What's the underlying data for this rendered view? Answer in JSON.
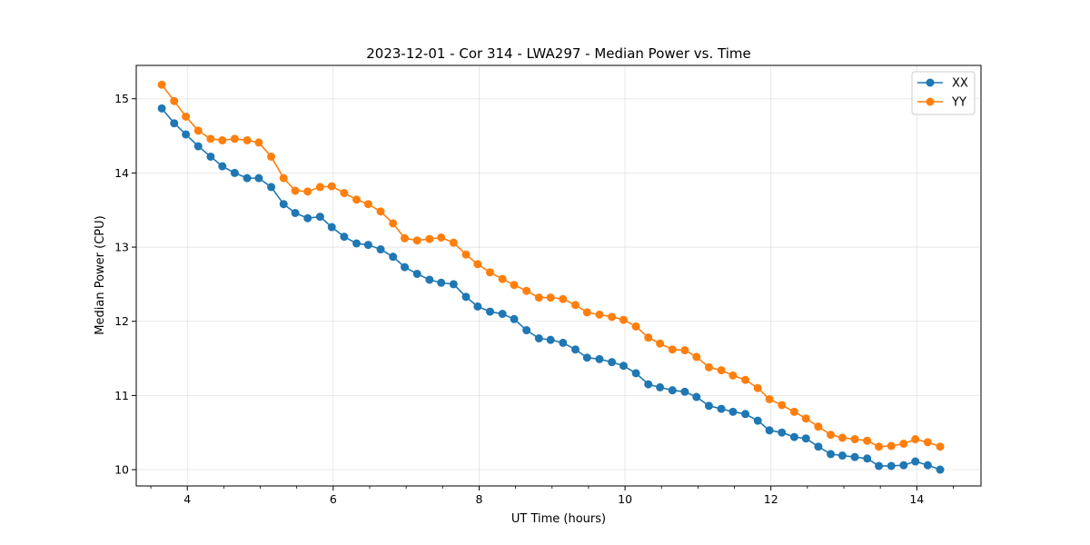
{
  "chart_data": {
    "type": "line",
    "title": "2023-12-01 - Cor 314 - LWA297 - Median Power vs. Time",
    "xlabel": "UT Time (hours)",
    "ylabel": "Median Power (CPU)",
    "xlim": [
      3.3,
      14.88
    ],
    "ylim": [
      9.78,
      15.45
    ],
    "xticks": [
      4,
      6,
      8,
      10,
      12,
      14
    ],
    "xticks_minor_step": 0.5,
    "yticks": [
      10,
      11,
      12,
      13,
      14,
      15
    ],
    "grid": true,
    "legend_position": "top-right",
    "x": [
      3.65,
      3.82,
      3.98,
      4.15,
      4.32,
      4.48,
      4.65,
      4.82,
      4.98,
      5.15,
      5.32,
      5.48,
      5.65,
      5.82,
      5.98,
      6.15,
      6.32,
      6.48,
      6.65,
      6.82,
      6.98,
      7.15,
      7.32,
      7.48,
      7.65,
      7.82,
      7.98,
      8.15,
      8.32,
      8.48,
      8.65,
      8.82,
      8.98,
      9.15,
      9.32,
      9.48,
      9.65,
      9.82,
      9.98,
      10.15,
      10.32,
      10.48,
      10.65,
      10.82,
      10.98,
      11.15,
      11.32,
      11.48,
      11.65,
      11.82,
      11.98,
      12.15,
      12.32,
      12.48,
      12.65,
      12.82,
      12.98,
      13.15,
      13.32,
      13.48,
      13.65,
      13.82,
      13.98,
      14.15,
      14.32
    ],
    "series": [
      {
        "name": "XX",
        "color": "#1f77b4",
        "values": [
          14.87,
          14.67,
          14.52,
          14.36,
          14.22,
          14.09,
          14.0,
          13.93,
          13.93,
          13.81,
          13.58,
          13.46,
          13.39,
          13.41,
          13.27,
          13.14,
          13.05,
          13.03,
          12.97,
          12.87,
          12.73,
          12.64,
          12.56,
          12.52,
          12.5,
          12.33,
          12.2,
          12.13,
          12.1,
          12.03,
          11.88,
          11.77,
          11.75,
          11.71,
          11.62,
          11.51,
          11.49,
          11.45,
          11.4,
          11.3,
          11.15,
          11.11,
          11.07,
          11.05,
          10.98,
          10.86,
          10.82,
          10.78,
          10.75,
          10.66,
          10.53,
          10.5,
          10.44,
          10.42,
          10.31,
          10.21,
          10.19,
          10.17,
          10.15,
          10.05,
          10.05,
          10.06,
          10.11,
          10.06,
          10.0
        ]
      },
      {
        "name": "YY",
        "color": "#ff7f0e",
        "values": [
          15.19,
          14.97,
          14.76,
          14.57,
          14.46,
          14.44,
          14.46,
          14.44,
          14.41,
          14.22,
          13.93,
          13.76,
          13.75,
          13.81,
          13.82,
          13.73,
          13.64,
          13.58,
          13.48,
          13.32,
          13.12,
          13.09,
          13.11,
          13.13,
          13.06,
          12.9,
          12.77,
          12.66,
          12.57,
          12.49,
          12.41,
          12.32,
          12.32,
          12.3,
          12.22,
          12.12,
          12.09,
          12.06,
          12.02,
          11.93,
          11.78,
          11.7,
          11.62,
          11.61,
          11.52,
          11.38,
          11.34,
          11.27,
          11.21,
          11.1,
          10.95,
          10.87,
          10.78,
          10.69,
          10.58,
          10.47,
          10.43,
          10.41,
          10.39,
          10.31,
          10.32,
          10.35,
          10.41,
          10.37,
          10.31
        ]
      }
    ]
  }
}
